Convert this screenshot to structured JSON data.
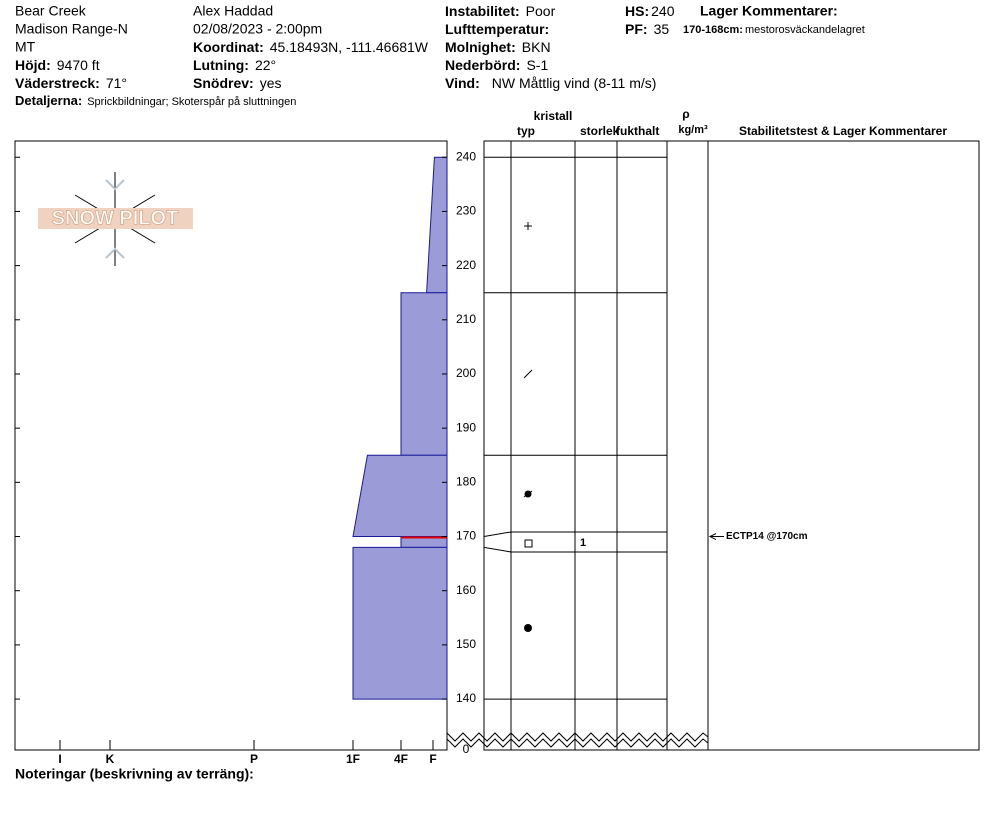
{
  "header": {
    "site": "Bear Creek",
    "range": "Madison Range-N",
    "state": "MT",
    "observer": "Alex Haddad",
    "datetime": "02/08/2023 - 2:00pm",
    "fields": [
      {
        "label": "Höjd:",
        "value": "9470 ft"
      },
      {
        "label": "Väderstreck:",
        "value": "71°"
      },
      {
        "label": "Detaljerna:",
        "value": "Sprickbildningar;  Skoterspår på sluttningen"
      },
      {
        "label": "Koordinat:",
        "value": "45.18493N, -111.46681W"
      },
      {
        "label": "Lutning:",
        "value": "22°"
      },
      {
        "label": "Snödrev:",
        "value": "yes"
      },
      {
        "label": "Instabilitet:",
        "value": "Poor"
      },
      {
        "label": "Lufttemperatur:"
      },
      {
        "label": "Molnighet:",
        "value": "BKN"
      },
      {
        "label": "Nederbörd:",
        "value": "S-1"
      },
      {
        "label": "Vind:",
        "value": "NW Måttlig vind (8-11 m/s)"
      },
      {
        "label": "HS:",
        "value": 240
      },
      {
        "label": "PF:",
        "value": 35
      }
    ],
    "layer_comments_title": "Lager Kommentarer:",
    "layer_comments": [
      {
        "range": "170-168cm:",
        "text": "mestorosväckandelagret"
      }
    ]
  },
  "logo": "SNOW PILOT",
  "table_headers": {
    "crystal": "kristall",
    "type": "typ",
    "size": "storlek",
    "moisture": "fukthalt",
    "density_symbol": "ρ",
    "density_unit": "kg/m³",
    "comments": "Stabilitetstest & Lager Kommentarer"
  },
  "chart_data": {
    "type": "snow-profile",
    "ylim": [
      133,
      243
    ],
    "yticks": [
      0,
      140,
      150,
      160,
      170,
      180,
      190,
      200,
      210,
      220,
      230,
      240
    ],
    "axis_break": true,
    "xlim": [
      6.9,
      0
    ],
    "xticks": [
      {
        "value": 6,
        "label": "I"
      },
      {
        "value": 5,
        "label": "K"
      },
      {
        "value": 4,
        "label": "P"
      },
      {
        "value": 3,
        "label": "1F"
      },
      {
        "value": 2,
        "label": "4F"
      },
      {
        "value": 1,
        "label": "F"
      }
    ],
    "color": "#9b9bd8",
    "edge_color": "#1a1a9a",
    "critical_color": "#e00000",
    "layers": {
      "top": [
        240,
        215,
        185,
        170,
        168
      ],
      "bottom": [
        215,
        185,
        170,
        168,
        140
      ],
      "hardness_top": [
        0.9,
        2,
        2.7,
        2,
        3
      ],
      "hardness_bottom": [
        1.2,
        2,
        3,
        2,
        3
      ],
      "critical": [
        false,
        false,
        false,
        true,
        false
      ],
      "grain_size": [
        null,
        null,
        null,
        1,
        null
      ]
    },
    "stability_tests": [
      {
        "height": 170,
        "label": "ECTP14 @170cm"
      }
    ]
  },
  "footer": "Noteringar (beskrivning av terräng):"
}
